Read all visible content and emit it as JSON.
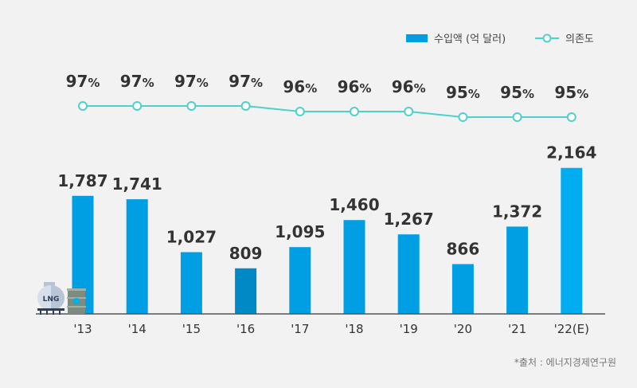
{
  "chart_data": {
    "type": "bar+line",
    "categories": [
      "'13",
      "'14",
      "'15",
      "'16",
      "'17",
      "'18",
      "'19",
      "'20",
      "'21",
      "'22(E)"
    ],
    "series": [
      {
        "name": "수입액 (억 달러)",
        "type": "bar",
        "values": [
          1787,
          1741,
          1027,
          809,
          1095,
          1460,
          1267,
          866,
          1372,
          2164
        ],
        "labels": [
          "1,787",
          "1,741",
          "1,027",
          "809",
          "1,095",
          "1,460",
          "1,267",
          "866",
          "1,372",
          "2,164"
        ],
        "color": "#009fe3"
      },
      {
        "name": "의존도",
        "type": "line",
        "values": [
          97,
          97,
          97,
          97,
          96,
          96,
          96,
          95,
          95,
          95
        ],
        "unit": "%",
        "color": "#4fd1c9"
      }
    ],
    "highlight_colors": {
      "'16": "#0089c4",
      "'22(E)": "#00adf0"
    },
    "grid": false,
    "legend": "top-right"
  },
  "source": "*출처 : 에너지경제연구원",
  "icons": [
    "lng-tank-icon",
    "oil-barrel-icon"
  ],
  "icon_text": "LNG"
}
